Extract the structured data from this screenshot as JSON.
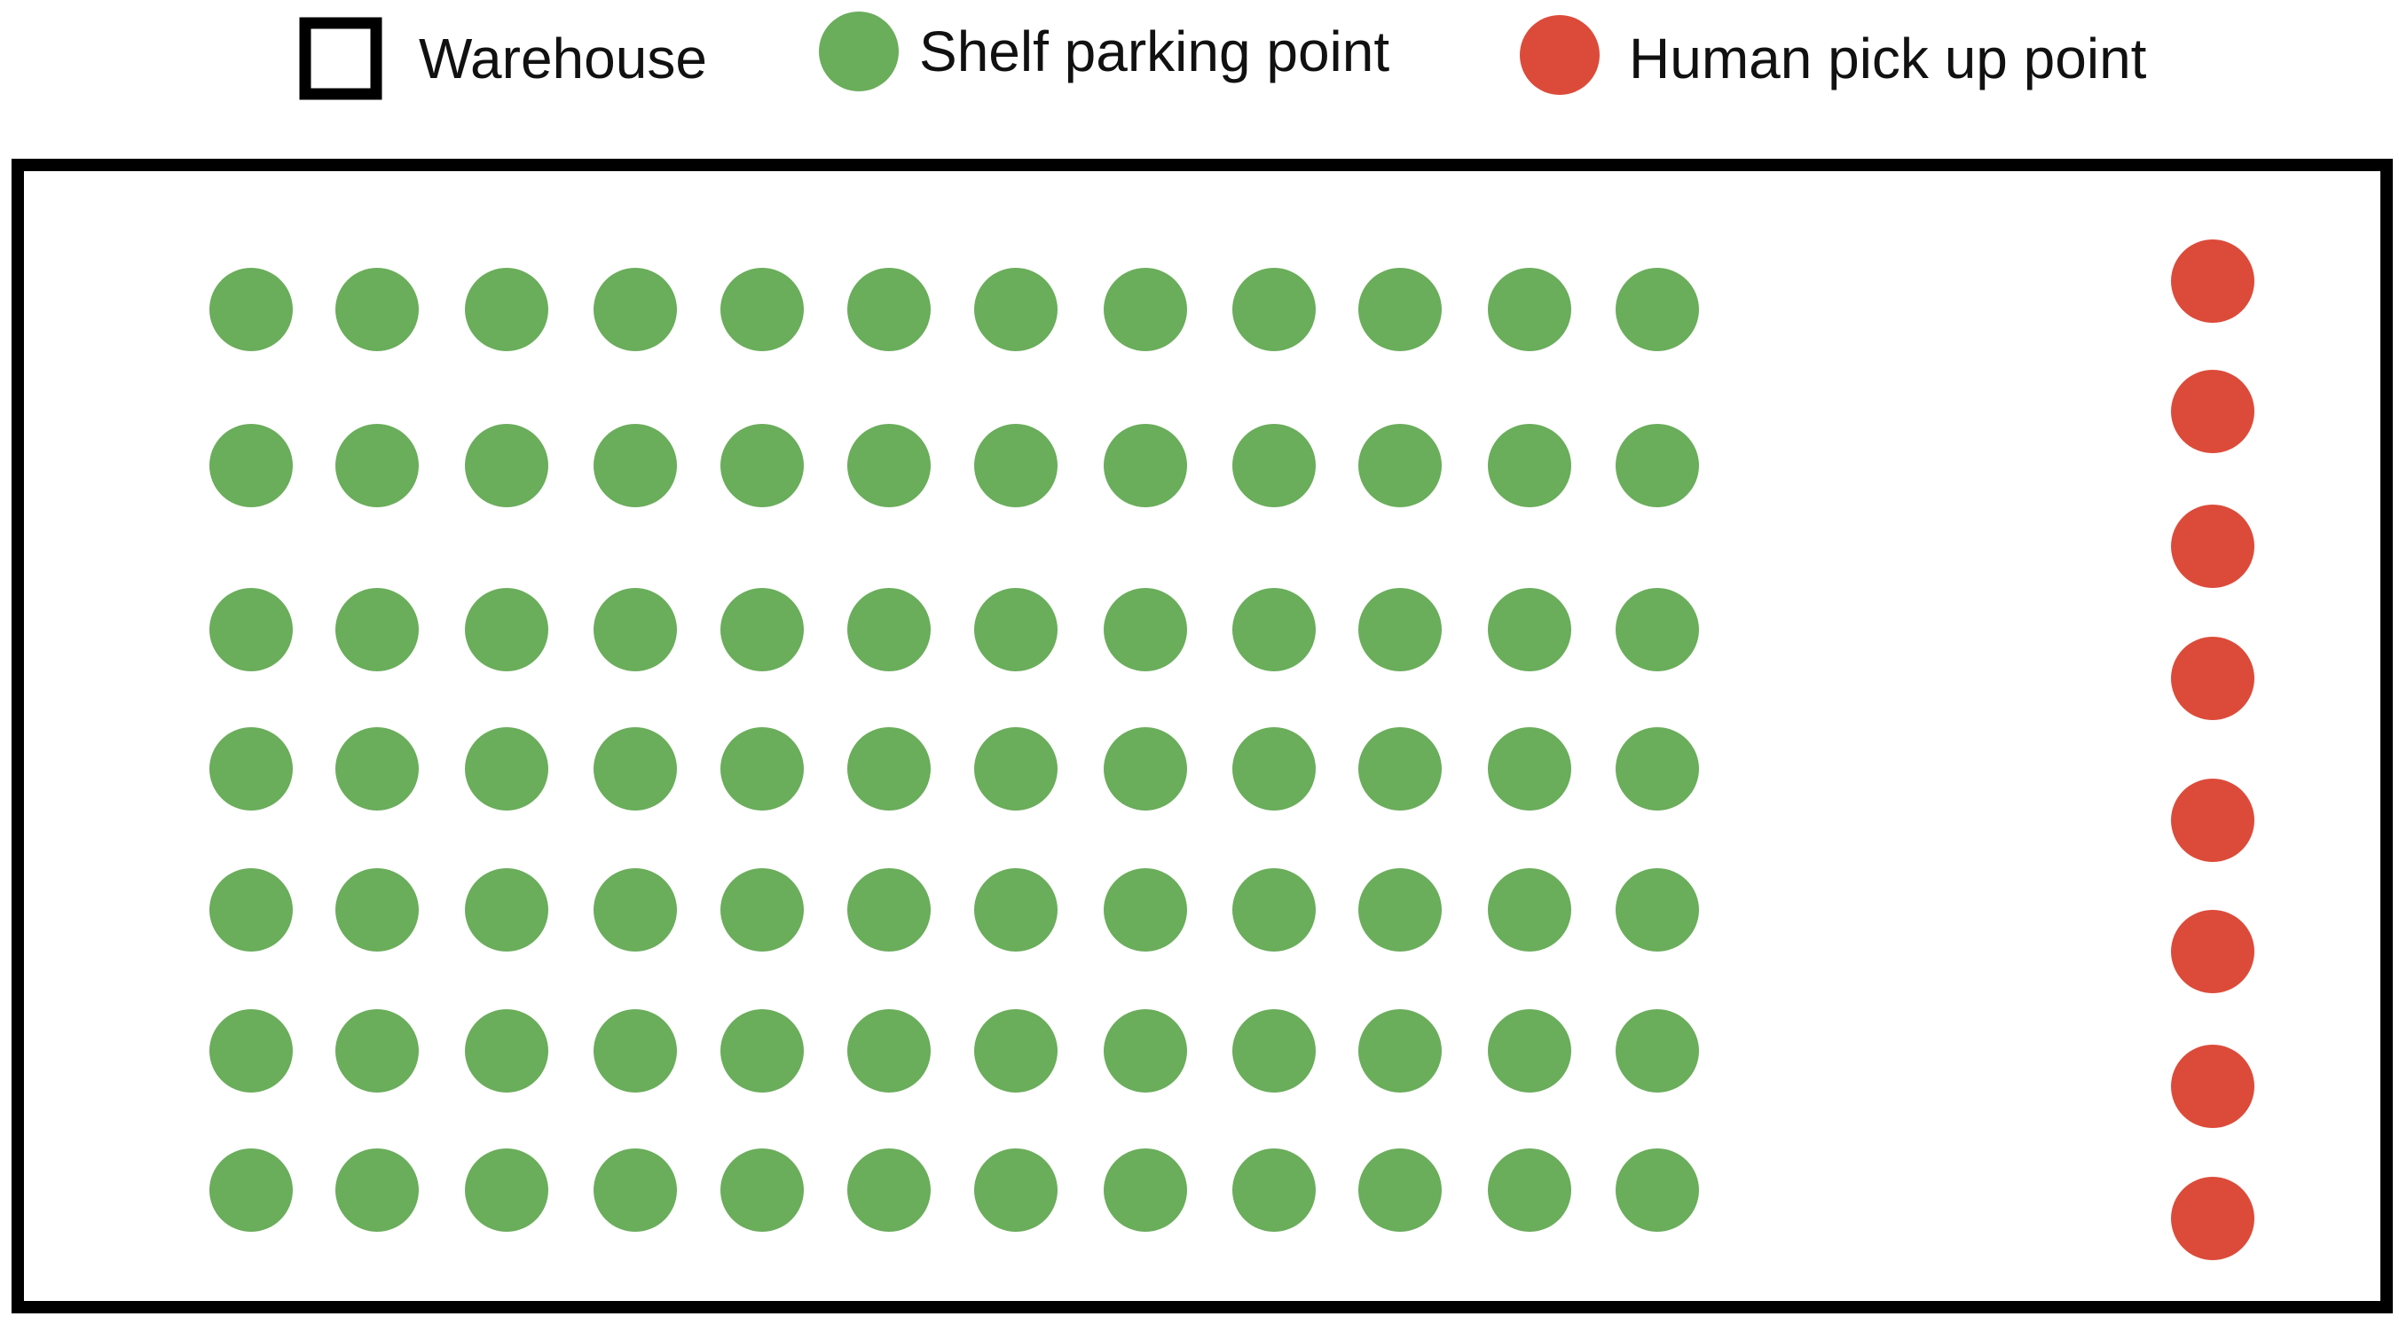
{
  "legend": {
    "warehouse_label": "Warehouse",
    "shelf_label": "Shelf parking point",
    "pickup_label": "Human pick up point"
  },
  "warehouse": {
    "shelf_grid": {
      "rows": 7,
      "columns": 12,
      "total": 84
    },
    "pickup_points": {
      "count": 8
    }
  },
  "colors": {
    "shelf": "#6aad5b",
    "pickup": "#dc4b3a",
    "border": "#000000",
    "background": "#ffffff"
  }
}
